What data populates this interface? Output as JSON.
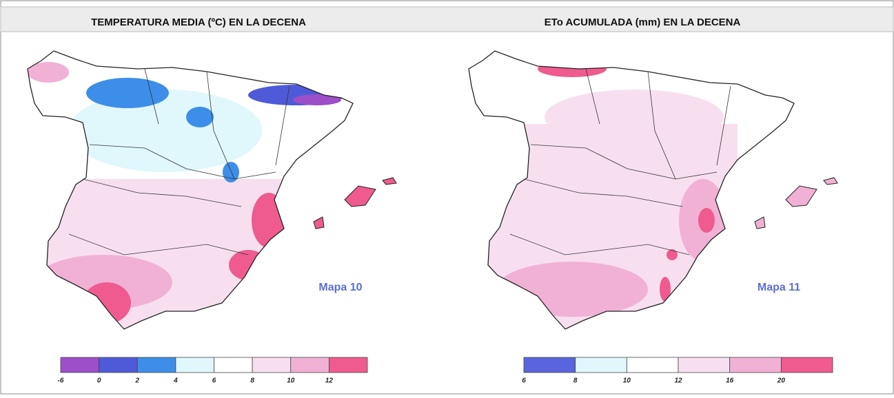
{
  "panels": [
    {
      "title": "TEMPERATURA MEDIA (ºC) EN LA DECENA",
      "map_label": "Mapa 10",
      "legend": {
        "colors": [
          "#9c4fc8",
          "#4f5ad8",
          "#3d8ee8",
          "#e0f7fb",
          "#ffffff",
          "#f7dff0",
          "#f1b1d4",
          "#ef5b8f"
        ],
        "ticks": [
          -6,
          0,
          2,
          4,
          6,
          8,
          10,
          12
        ]
      }
    },
    {
      "title": "ETo ACUMULADA (mm) EN LA DECENA",
      "map_label": "Mapa 11",
      "legend": {
        "colors": [
          "#5a64dc",
          "#e0f7fb",
          "#ffffff",
          "#f7dff0",
          "#f1b1d4",
          "#ef5b8f"
        ],
        "ticks": [
          6,
          8,
          10,
          12,
          16,
          20
        ]
      }
    }
  ]
}
